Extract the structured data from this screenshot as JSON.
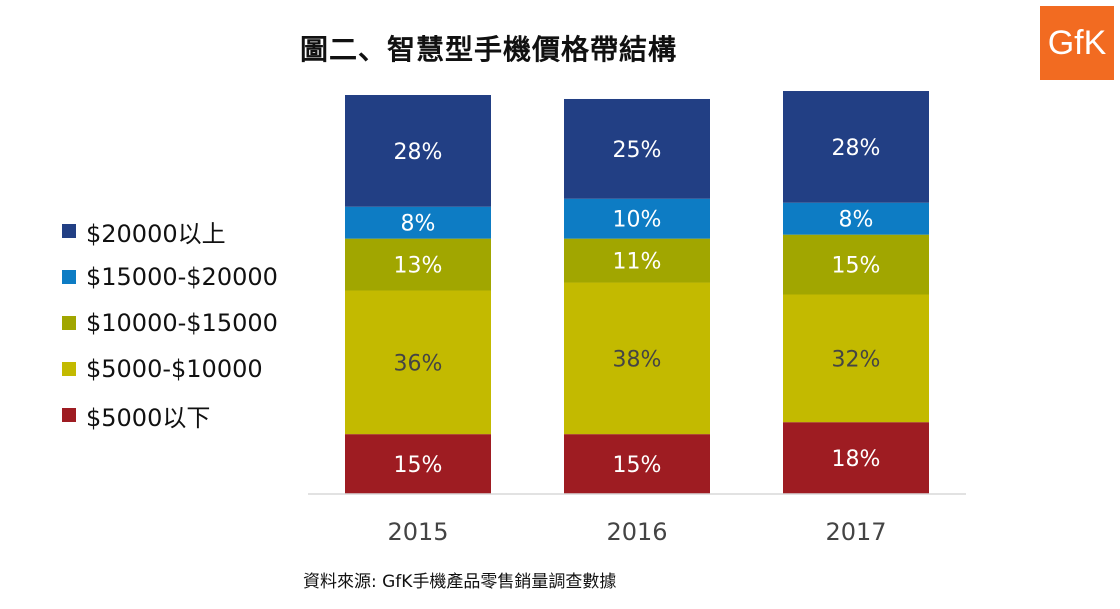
{
  "title": "圖二、智慧型手機價格帶結構",
  "logo": "GfK",
  "source": "資料來源: GfK手機產品零售銷量調查數據",
  "chart_data": {
    "type": "bar",
    "stacked": true,
    "percent": true,
    "categories": [
      "2015",
      "2016",
      "2017"
    ],
    "series": [
      {
        "name": "$5000以下",
        "color": "#9e1c22",
        "values": [
          15,
          15,
          18
        ],
        "label_dark": false
      },
      {
        "name": "$5000-$10000",
        "color": "#c3ba00",
        "values": [
          36,
          38,
          32
        ],
        "label_dark": true
      },
      {
        "name": "$10000-$15000",
        "color": "#a1a600",
        "values": [
          13,
          11,
          15
        ],
        "label_dark": false
      },
      {
        "name": "$15000-$20000",
        "color": "#0d7cc4",
        "values": [
          8,
          10,
          8
        ],
        "label_dark": false
      },
      {
        "name": "$20000以上",
        "color": "#223f84",
        "values": [
          28,
          25,
          28
        ],
        "label_dark": false
      }
    ],
    "ylim": [
      0,
      100
    ],
    "grid": false,
    "legend": "left"
  }
}
